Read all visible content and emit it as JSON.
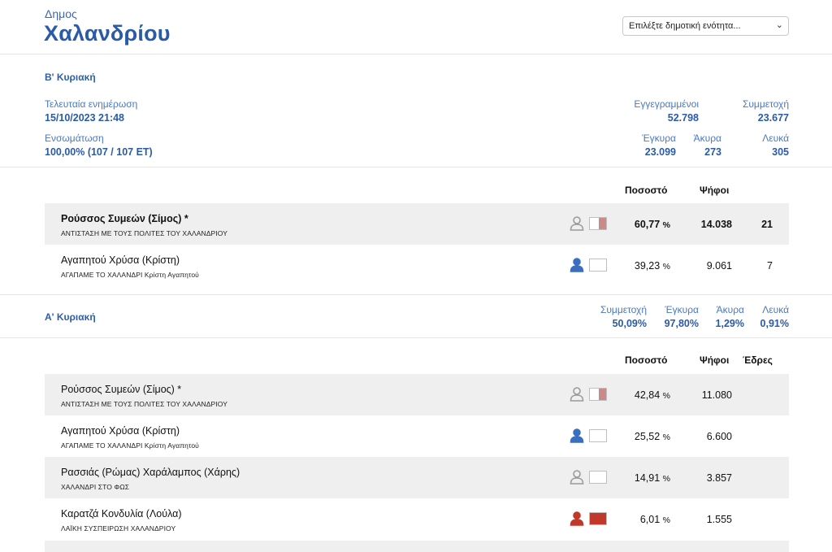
{
  "header": {
    "municipality_label": "Δημος",
    "municipality_name": "Χαλανδρίου",
    "select_placeholder": "Επιλέξτε δημοτική ενότητα..."
  },
  "round_b": {
    "title": "Β' Κυριακή",
    "last_update_label": "Τελευταία ενημέρωση",
    "last_update_value": "15/10/2023 21:48",
    "integration_label": "Ενσωμάτωση",
    "integration_value": "100,00% (107 / 107 ΕΤ)",
    "registered_label": "Εγγεγραμμένοι",
    "registered_value": "52.798",
    "turnout_label": "Συμμετοχή",
    "turnout_value": "23.677",
    "valid_label": "Έγκυρα",
    "valid_value": "23.099",
    "invalid_label": "Άκυρα",
    "invalid_value": "273",
    "blank_label": "Λευκά",
    "blank_value": "305",
    "columns": {
      "percent": "Ποσοστό",
      "votes": "Ψήφοι"
    },
    "candidates": [
      {
        "name": "Ρούσσος Συμεών (Σίμος) *",
        "party": "ΑΝΤΙΣΤΑΣΗ ΜΕ ΤΟΥΣ ΠΟΛΙΤΕΣ ΤΟΥ ΧΑΛΑΝΔΡΙΟΥ",
        "percent": "60,77",
        "unit": "%",
        "votes": "14.038",
        "seats": "21",
        "icon_color": "#9a9a9a",
        "swatch_color": "#c98a8a"
      },
      {
        "name": "Αγαπητού Χρύσα (Κρίστη)",
        "party": "ΑΓΑΠΑΜΕ ΤΟ ΧΑΛΑΝΔΡΙ Κρίστη Αγαπητού",
        "percent": "39,23",
        "unit": "%",
        "votes": "9.061",
        "seats": "7",
        "icon_color": "#3a6fbf",
        "swatch_color": "#ffffff"
      }
    ]
  },
  "round_a": {
    "title": "Α' Κυριακή",
    "turnout_label": "Συμμετοχή",
    "turnout_value": "50,09%",
    "valid_label": "Έγκυρα",
    "valid_value": "97,80%",
    "invalid_label": "Άκυρα",
    "invalid_value": "1,29%",
    "blank_label": "Λευκά",
    "blank_value": "0,91%",
    "columns": {
      "percent": "Ποσοστό",
      "votes": "Ψήφοι",
      "seats": "Έδρες"
    },
    "candidates": [
      {
        "name": "Ρούσσος Συμεών (Σίμος) *",
        "party": "ΑΝΤΙΣΤΑΣΗ ΜΕ ΤΟΥΣ ΠΟΛΙΤΕΣ ΤΟΥ ΧΑΛΑΝΔΡΙΟΥ",
        "percent": "42,84",
        "unit": "%",
        "votes": "11.080",
        "icon_color": "#9a9a9a",
        "swatch_color": "#c98a8a"
      },
      {
        "name": "Αγαπητού Χρύσα (Κρίστη)",
        "party": "ΑΓΑΠΑΜΕ ΤΟ ΧΑΛΑΝΔΡΙ Κρίστη Αγαπητού",
        "percent": "25,52",
        "unit": "%",
        "votes": "6.600",
        "icon_color": "#3a6fbf",
        "swatch_color": "#ffffff"
      },
      {
        "name": "Ρασσιάς (Ρώμας) Χαράλαμπος (Χάρης)",
        "party": "ΧΑΛΑΝΔΡΙ ΣΤΟ ΦΩΣ",
        "percent": "14,91",
        "unit": "%",
        "votes": "3.857",
        "icon_color": "#9a9a9a",
        "swatch_color": "#ffffff"
      },
      {
        "name": "Καρατζά Κονδυλία (Λούλα)",
        "party": "ΛΑΪΚΗ ΣΥΣΠΕΙΡΩΣΗ ΧΑΛΑΝΔΡΙΟΥ",
        "percent": "6,01",
        "unit": "%",
        "votes": "1.555",
        "icon_color": "#c0392b",
        "swatch_color": "#c0392b"
      }
    ]
  }
}
